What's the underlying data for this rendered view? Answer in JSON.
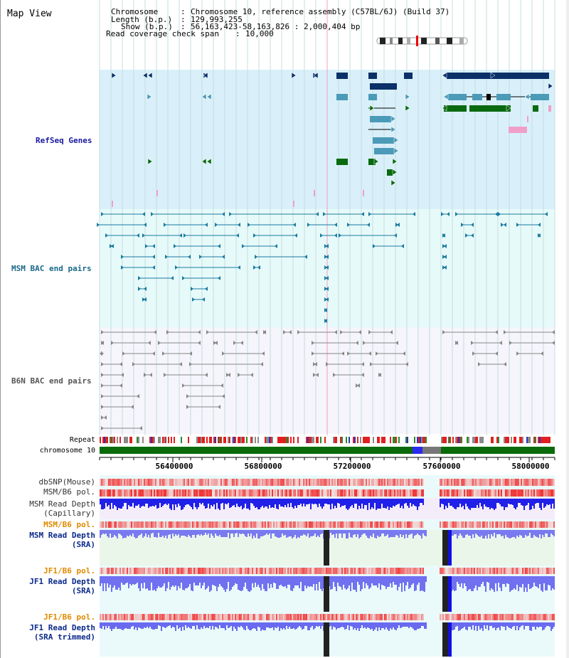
{
  "title": "Map View",
  "info": {
    "chromosome_key": "Chromosome",
    "chromosome_val": "Chromosome 10, reference assembly (C57BL/6J) (Build 37)",
    "length_key": "Length (b.p.)",
    "length_val": "129,993,255",
    "show_key": "Show (b.p.)",
    "show_val": "56,163,423-58,163,826 : 2,000,404 bp",
    "span_key": "Read coverage check span",
    "span_val": "10,000"
  },
  "tracks": {
    "refseq": "RefSeq Genes",
    "msm_bac": "MSM BAC end pairs",
    "b6n_bac": "B6N BAC end pairs",
    "repeat": "Repeat",
    "chrom": "chromosome 10",
    "dbsnp": "dbSNP(Mouse)",
    "msm_b6_pol": "MSM/B6 pol.",
    "msm_depth_cap_1": "MSM Read Depth",
    "msm_depth_cap_2": "(Capillary)",
    "msm_b6_pol2": "MSM/B6 pol.",
    "msm_depth_sra_1": "MSM Read Depth",
    "msm_depth_sra_2": "(SRA)",
    "jf1_b6_pol": "JF1/B6 pol.",
    "jf1_depth_sra_1": "JF1 Read Depth",
    "jf1_depth_sra_2": "(SRA)",
    "jf1_b6_pol2": "JF1/B6 pol.",
    "jf1_depth_trim_1": "JF1 Read Depth",
    "jf1_depth_trim_2": "(SRA trimmed)"
  },
  "axis": {
    "ticks": [
      "56400000",
      "56800000",
      "57200000",
      "57600000",
      "58000000"
    ]
  },
  "colors": {
    "refseq_bg": "#d9f0fa",
    "msm_bg": "#e6fafa",
    "b6n_bg": "#f5f5fb",
    "gene_dark": "#0c3068",
    "gene_mid": "#4a9ab8",
    "gene_green": "#0a6a10",
    "gene_pink": "#f0a0c8",
    "msm_bac": "#1a7aa0",
    "b6n_bac": "#888888",
    "chrom_green": "#0a6a0a",
    "depth_blue": "#2020e0",
    "depth_light": "#7070f0",
    "label_navy": "#0a2a8a",
    "label_orange": "#e08a00",
    "label_teal": "#1a6a8a"
  }
}
